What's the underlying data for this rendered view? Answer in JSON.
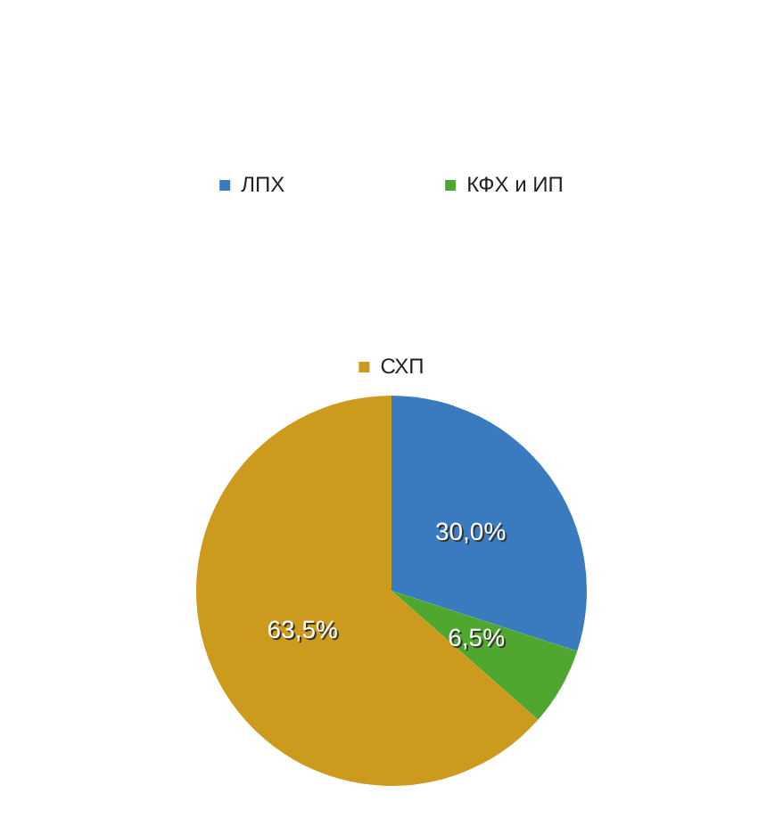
{
  "chart_data": {
    "type": "pie",
    "categories": [
      "ЛПХ",
      "КФХ и ИП",
      "СХП"
    ],
    "values": [
      30.0,
      6.5,
      63.5
    ],
    "colors": [
      "#3a7bc0",
      "#4fa72f",
      "#cc9a1c"
    ],
    "value_labels": [
      "30,0%",
      "6,5%",
      "63,5%"
    ],
    "legend": "top"
  }
}
